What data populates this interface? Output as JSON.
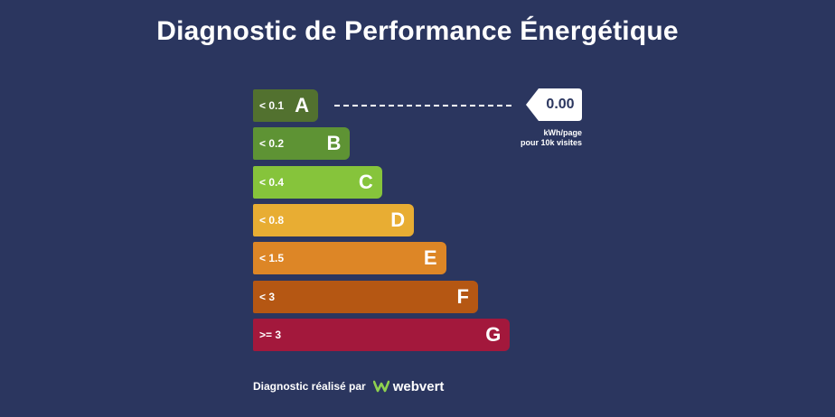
{
  "title": "Diagnostic de Performance Énergétique",
  "chart_data": {
    "type": "bar",
    "categories": [
      "A",
      "B",
      "C",
      "D",
      "E",
      "F",
      "G"
    ],
    "ranges": [
      "< 0.1",
      "< 0.2",
      "< 0.4",
      "< 0.8",
      "< 1.5",
      "< 3",
      ">= 3"
    ],
    "colors": [
      "#52712f",
      "#5e9334",
      "#86c43b",
      "#e8ad33",
      "#dd8626",
      "#b55713",
      "#a3183c"
    ],
    "current_rating": "A",
    "value": "0.00",
    "unit_line1": "kWh/page",
    "unit_line2": "pour 10k visites"
  },
  "footer": {
    "text": "Diagnostic réalisé par",
    "brand": "webvert",
    "brand_icon": "webvert-logo-icon",
    "brand_color": "#8fd14f"
  }
}
